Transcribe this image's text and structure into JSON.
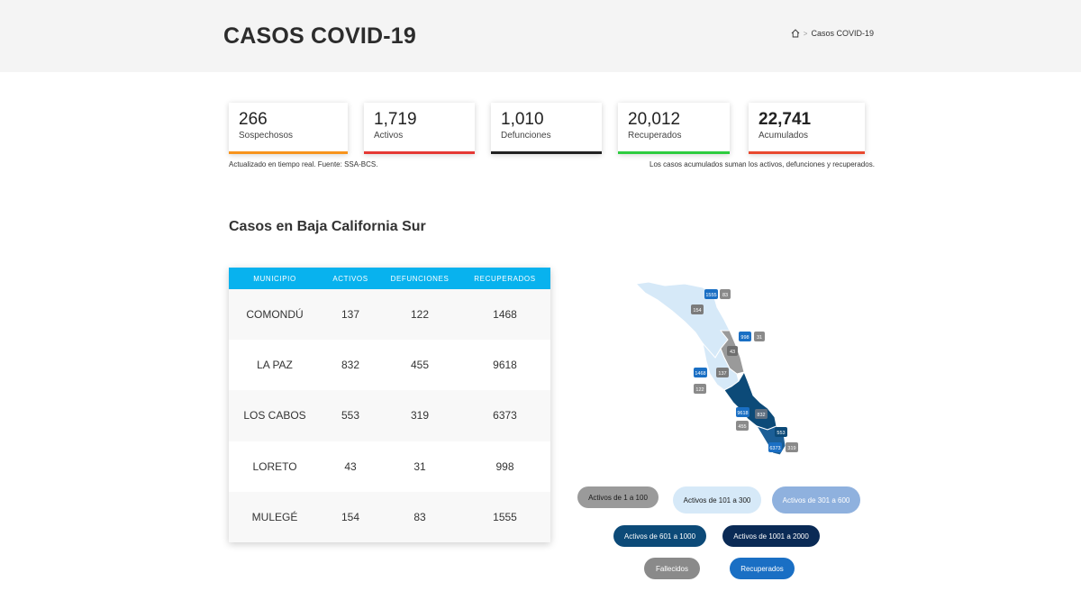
{
  "header": {
    "title": "CASOS COVID-19",
    "breadcrumb": {
      "separator": ">",
      "current": "Casos COVID-19"
    }
  },
  "stats": [
    {
      "value": "266",
      "label": "Sospechosos",
      "color": "#f7941d"
    },
    {
      "value": "1,719",
      "label": "Activos",
      "color": "#e53935"
    },
    {
      "value": "1,010",
      "label": "Defunciones",
      "color": "#222222"
    },
    {
      "value": "20,012",
      "label": "Recuperados",
      "color": "#2ecc40"
    },
    {
      "value": "22,741",
      "label": "Acumulados",
      "color": "#e8492f"
    }
  ],
  "notes": {
    "left": "Actualizado en tiempo real. Fuente: SSA-BCS.",
    "right": "Los casos acumulados suman los activos, defunciones y recuperados."
  },
  "section_title": "Casos en Baja California Sur",
  "table": {
    "header_color": "#08b2ee",
    "columns": [
      "MUNICIPIO",
      "ACTIVOS",
      "DEFUNCIONES",
      "RECUPERADOS"
    ],
    "rows": [
      {
        "municipio": "COMONDÚ",
        "activos": "137",
        "defunciones": "122",
        "recuperados": "1468"
      },
      {
        "municipio": "LA PAZ",
        "activos": "832",
        "defunciones": "455",
        "recuperados": "9618"
      },
      {
        "municipio": "LOS CABOS",
        "activos": "553",
        "defunciones": "319",
        "recuperados": "6373"
      },
      {
        "municipio": "LORETO",
        "activos": "43",
        "defunciones": "31",
        "recuperados": "998"
      },
      {
        "municipio": "MULEGÉ",
        "activos": "154",
        "defunciones": "83",
        "recuperados": "1555"
      }
    ]
  },
  "map": {
    "badges": {
      "mulege_rec": "1555",
      "mulege_fal": "83",
      "mulege_act": "154",
      "loreto_rec": "998",
      "loreto_fal": "31",
      "loreto_act": "43",
      "comondu_rec": "1468",
      "comondu_act": "137",
      "comondu_fal": "122",
      "lapaz_rec": "9618",
      "lapaz_act": "832",
      "lapaz_fal": "455",
      "loscabos_act": "553",
      "loscabos_rec": "6373",
      "loscabos_fal": "319"
    }
  },
  "legend": [
    {
      "label": "Activos de 1 a 100",
      "bg": "#9a9a9a",
      "fg": "#1a1a1a"
    },
    {
      "label": "Activos de 101 a 300",
      "bg": "#d6e9f8",
      "fg": "#1a1a1a"
    },
    {
      "label": "Activos de 301 a 600",
      "bg": "#8fb1de",
      "fg": "#ffffff"
    },
    {
      "label": "Activos de 601 a 1000",
      "bg": "#0c4a78",
      "fg": "#ffffff"
    },
    {
      "label": "Activos de 1001 a 2000",
      "bg": "#0a2a55",
      "fg": "#ffffff"
    },
    {
      "label": "Fallecidos",
      "bg": "#8a8a8a",
      "fg": "#ffffff"
    },
    {
      "label": "Recuperados",
      "bg": "#1a6fc4",
      "fg": "#ffffff"
    }
  ]
}
